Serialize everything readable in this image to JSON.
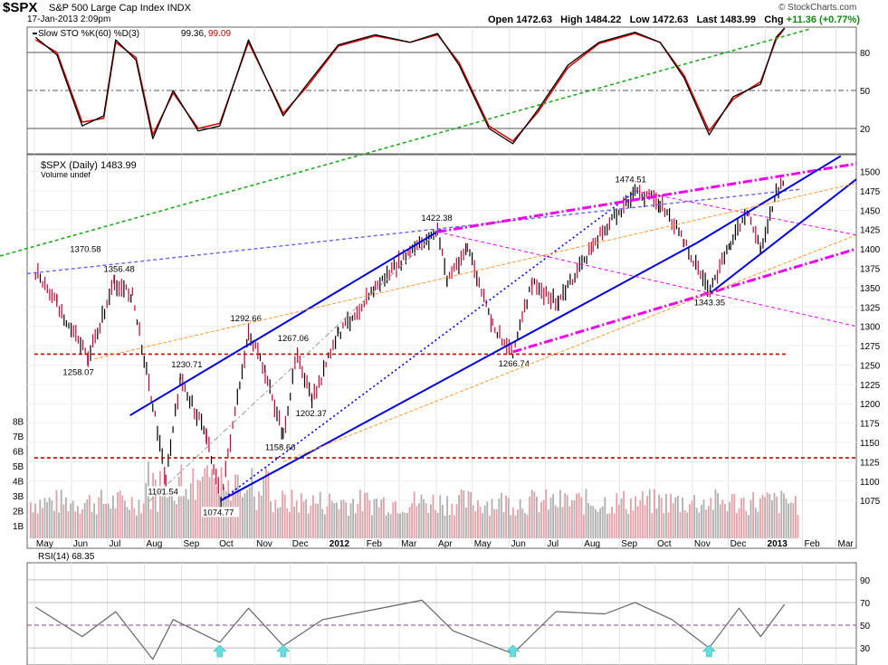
{
  "header": {
    "symbol": "$SPX",
    "name": "S&P 500 Large Cap Index INDX",
    "datetime": "17-Jan-2013 2:09pm",
    "open_label": "Open",
    "open": "1472.63",
    "high_label": "High",
    "high": "1484.22",
    "low_label": "Low",
    "low": "1472.63",
    "last_label": "Last",
    "last": "1483.99",
    "chg_label": "Chg",
    "chg": "+11.36 (+0.77%)",
    "credit": "© StockCharts.com"
  },
  "colors": {
    "price_up": "#000000",
    "price_down": "#cc0033",
    "channel": "#0000dd",
    "magenta": "#ee00ee",
    "support": "#cc0000",
    "green_trend": "#22aa22",
    "orange": "#ff9933",
    "rsi_fill_top": "#33aa33",
    "rsi_fill_bottom": "#cc3399",
    "arrow": "#66dddd"
  },
  "chart_data": [
    {
      "type": "line",
      "panel": "Slow Stochastic",
      "title": "Slow STO %K(60) %D(3)",
      "k_label": "99.36",
      "d_label": "99.09",
      "ylim": [
        0,
        100
      ],
      "yticks": [
        20,
        50,
        80
      ],
      "x": [
        "2011-05-02",
        "2011-05-20",
        "2011-06-10",
        "2011-06-28",
        "2011-07-08",
        "2011-07-25",
        "2011-08-08",
        "2011-08-25",
        "2011-09-15",
        "2011-10-03",
        "2011-10-27",
        "2011-11-25",
        "2011-12-15",
        "2012-01-10",
        "2012-02-10",
        "2012-03-10",
        "2012-04-02",
        "2012-04-20",
        "2012-05-15",
        "2012-06-04",
        "2012-06-25",
        "2012-07-20",
        "2012-08-15",
        "2012-09-14",
        "2012-10-05",
        "2012-10-25",
        "2012-11-15",
        "2012-12-05",
        "2012-12-28",
        "2013-01-10",
        "2013-01-17"
      ],
      "series": [
        {
          "name": "%K",
          "values": [
            92,
            78,
            22,
            30,
            90,
            74,
            12,
            50,
            18,
            22,
            90,
            30,
            55,
            86,
            94,
            88,
            95,
            70,
            20,
            8,
            35,
            70,
            88,
            96,
            88,
            60,
            15,
            45,
            55,
            92,
            99.36
          ]
        },
        {
          "name": "%D",
          "values": [
            90,
            80,
            25,
            28,
            88,
            76,
            15,
            48,
            20,
            24,
            88,
            32,
            53,
            85,
            93,
            88,
            94,
            72,
            22,
            10,
            33,
            68,
            87,
            95,
            88,
            62,
            18,
            43,
            57,
            90,
            99.09
          ]
        }
      ]
    },
    {
      "type": "line",
      "panel": "Price",
      "title": "$SPX (Daily) 1483.99",
      "subtitle": "Volume undef",
      "ylim": [
        1060,
        1510
      ],
      "yticks": [
        1075,
        1100,
        1125,
        1150,
        1175,
        1200,
        1225,
        1250,
        1275,
        1300,
        1325,
        1350,
        1375,
        1400,
        1425,
        1450,
        1475,
        1500
      ],
      "xticks": [
        "May",
        "Jun",
        "Jul",
        "Aug",
        "Sep",
        "Oct",
        "Nov",
        "Dec",
        "2012",
        "Feb",
        "Mar",
        "Apr",
        "May",
        "Jun",
        "Jul",
        "Aug",
        "Sep",
        "Oct",
        "Nov",
        "Dec",
        "2013",
        "Feb",
        "Mar"
      ],
      "x": [
        "2011-05-02",
        "2011-05-20",
        "2011-06-15",
        "2011-07-07",
        "2011-07-22",
        "2011-08-08",
        "2011-08-19",
        "2011-08-31",
        "2011-09-22",
        "2011-10-04",
        "2011-10-27",
        "2011-11-10",
        "2011-11-25",
        "2011-12-07",
        "2011-12-19",
        "2012-01-10",
        "2012-02-10",
        "2012-03-10",
        "2012-04-02",
        "2012-04-10",
        "2012-04-27",
        "2012-05-18",
        "2012-06-04",
        "2012-06-20",
        "2012-07-12",
        "2012-08-10",
        "2012-09-14",
        "2012-10-05",
        "2012-10-25",
        "2012-11-16",
        "2012-12-03",
        "2012-12-18",
        "2012-12-28",
        "2013-01-10",
        "2013-01-17"
      ],
      "values": [
        1370.58,
        1330,
        1258.07,
        1356.48,
        1340,
        1200,
        1101.54,
        1230.71,
        1160,
        1074.77,
        1292.66,
        1240,
        1158.66,
        1267.06,
        1202.37,
        1290,
        1350,
        1395,
        1422.38,
        1360,
        1402,
        1300,
        1266.74,
        1355,
        1330,
        1405,
        1474.51,
        1460,
        1410,
        1343.35,
        1410,
        1445,
        1400,
        1472,
        1483.99
      ],
      "annotations": [
        "1370.58",
        "1356.48",
        "1258.07",
        "1292.66",
        "1230.71",
        "1267.06",
        "1202.37",
        "1158.66",
        "1101.54",
        "1074.77",
        "1422.38",
        "1266.74",
        "1474.51",
        "1343.35"
      ],
      "volume_ticks": [
        "1B",
        "2B",
        "3B",
        "4B",
        "5B",
        "6B",
        "7B",
        "8B"
      ]
    },
    {
      "type": "line",
      "panel": "RSI",
      "title": "RSI(14) 68.35",
      "ylim": [
        15,
        105
      ],
      "yticks": [
        30,
        50,
        70,
        90
      ],
      "x": [
        "2011-05-02",
        "2011-06-10",
        "2011-07-08",
        "2011-08-08",
        "2011-08-25",
        "2011-10-03",
        "2011-10-27",
        "2011-11-25",
        "2011-12-28",
        "2012-02-10",
        "2012-03-20",
        "2012-04-15",
        "2012-06-04",
        "2012-07-10",
        "2012-08-20",
        "2012-09-14",
        "2012-10-15",
        "2012-11-15",
        "2012-12-10",
        "2012-12-28",
        "2013-01-17"
      ],
      "values": [
        66,
        40,
        62,
        20,
        55,
        35,
        65,
        32,
        55,
        64,
        72,
        45,
        25,
        62,
        60,
        70,
        55,
        30,
        65,
        40,
        68.35
      ]
    }
  ]
}
